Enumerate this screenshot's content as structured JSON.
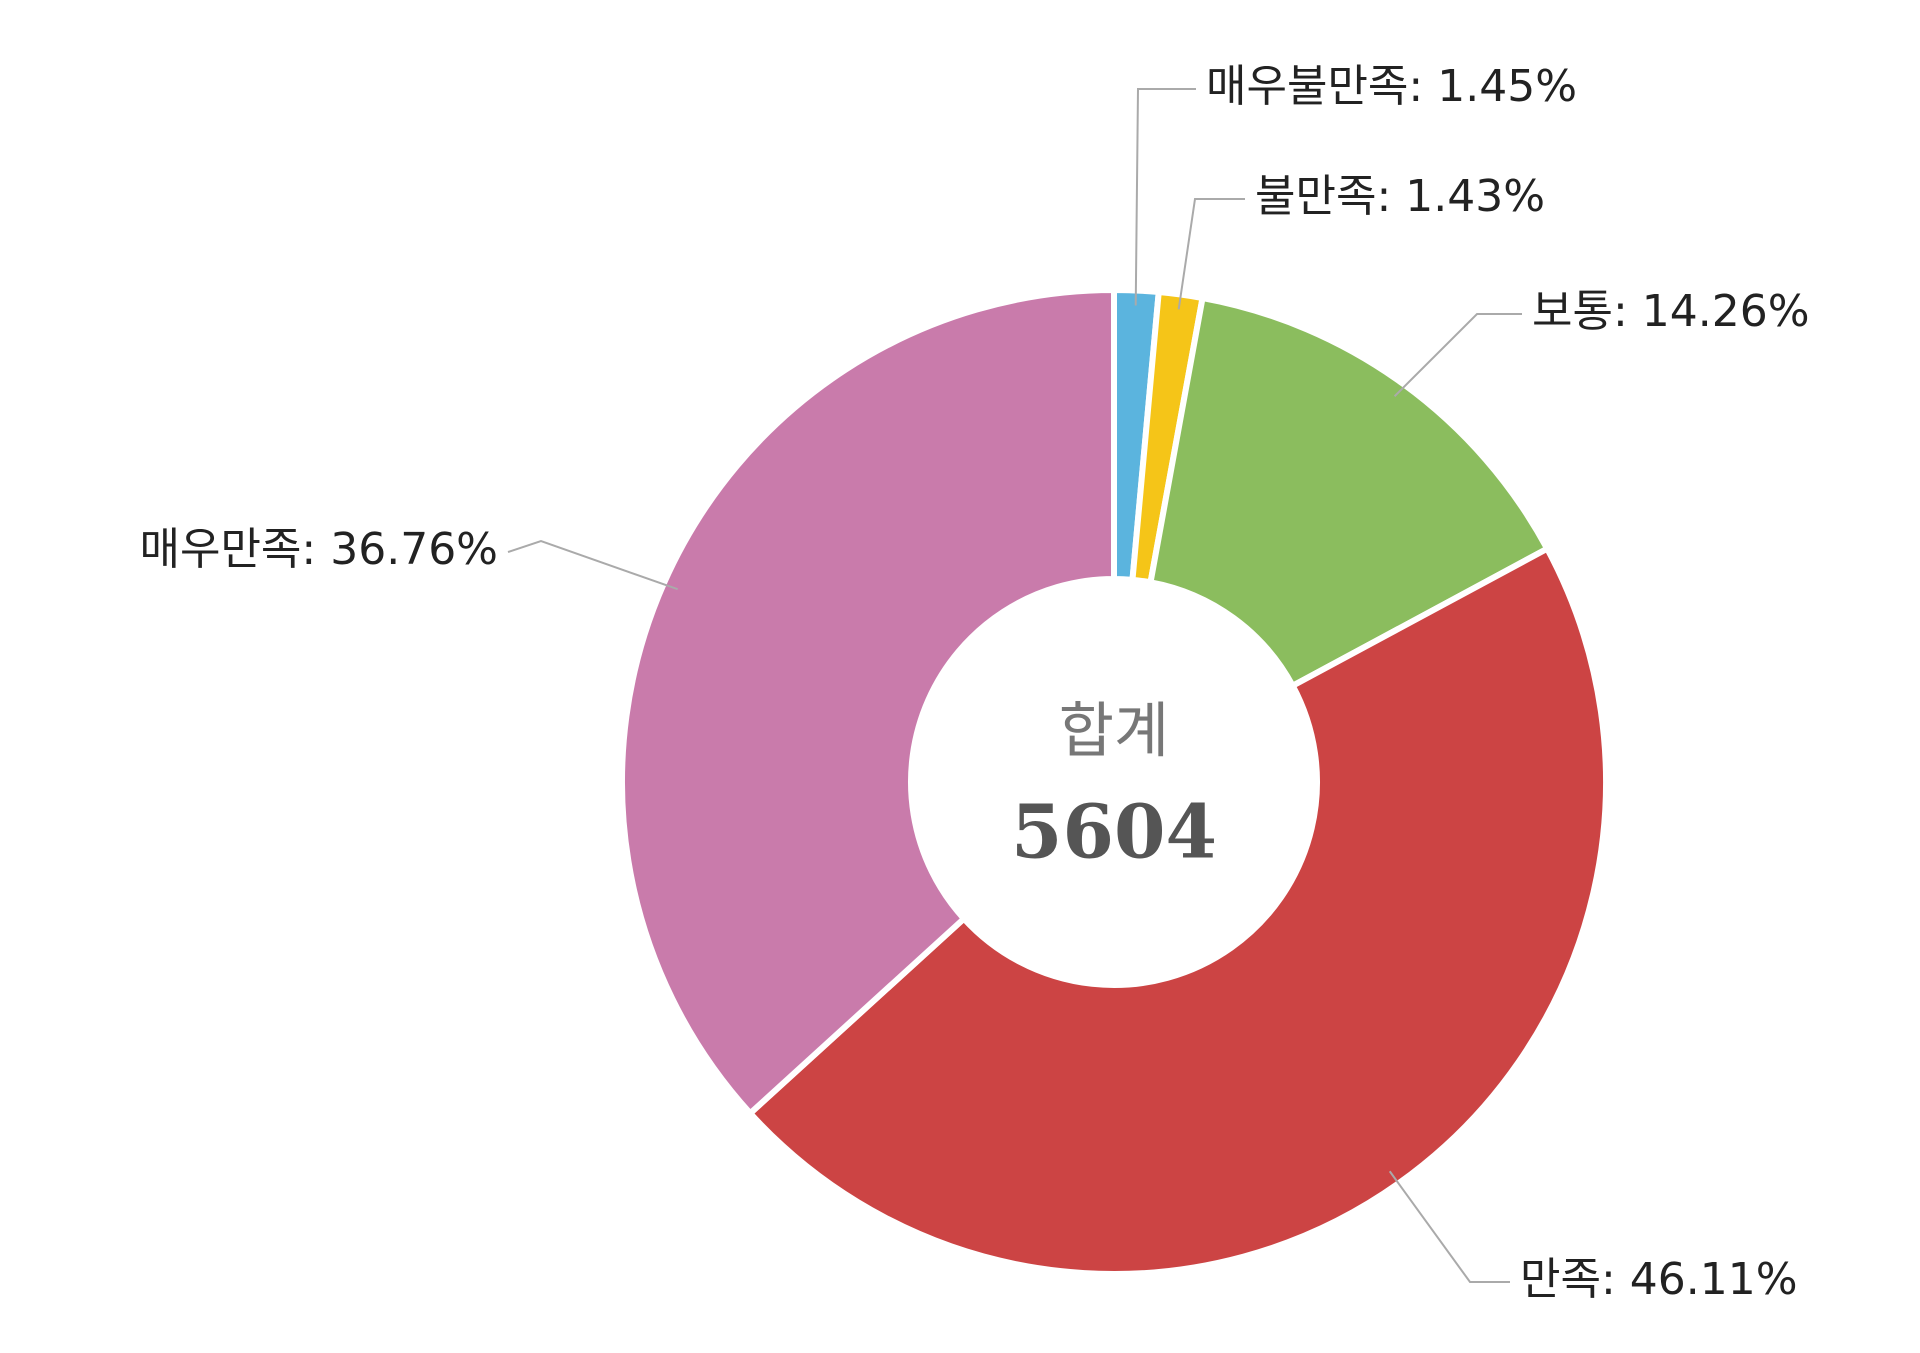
{
  "chart_data": {
    "type": "donut",
    "categories": [
      "매우불만족",
      "불만족",
      "보통",
      "만족",
      "매우만족"
    ],
    "values": [
      1.45,
      1.43,
      14.26,
      46.11,
      36.76
    ],
    "value_labels": [
      "1.45%",
      "1.43%",
      "14.26%",
      "46.11%",
      "36.76%"
    ],
    "label_separator": ": ",
    "colors": [
      "#5bb4de",
      "#f5c518",
      "#8bbd5e",
      "#cc4444",
      "#c97bab"
    ],
    "center_label": {
      "title": "합계",
      "value": 5604
    }
  }
}
